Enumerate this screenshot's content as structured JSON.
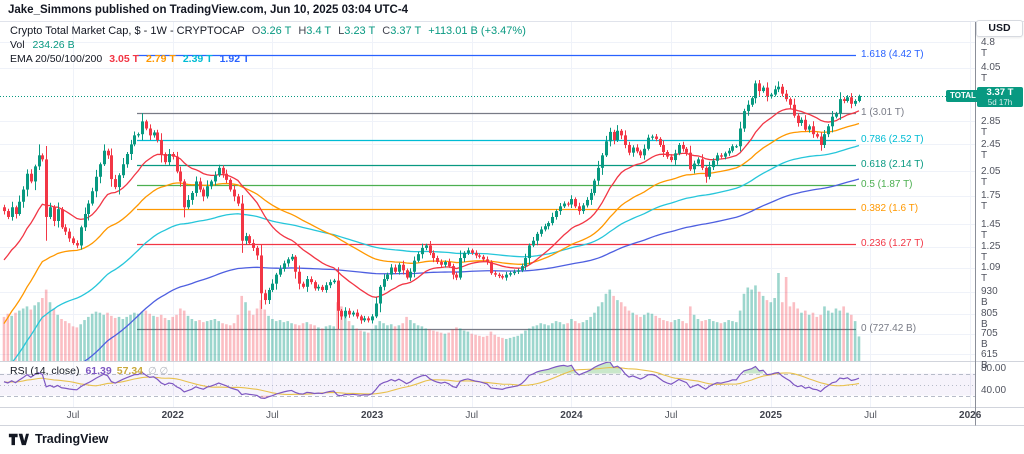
{
  "header": {
    "published_line": "Jake_Simmons published on TradingView.com, Jun 10, 2025 03:04 UTC-4"
  },
  "legend": {
    "title": "Crypto Total Market Cap, $ - 1W - CRYPTOCAP",
    "ohlc": [
      {
        "key": "O",
        "value": "3.26 T"
      },
      {
        "key": "H",
        "value": "3.4 T"
      },
      {
        "key": "L",
        "value": "3.23 T"
      },
      {
        "key": "C",
        "value": "3.37 T"
      }
    ],
    "change": "+113.01 B (+3.47%)",
    "vol_label": "Vol",
    "vol_value": "234.26 B",
    "ema_label": "EMA 20/50/100/200",
    "ema_values": [
      {
        "text": "3.05 T",
        "color": "#f23645"
      },
      {
        "text": "2.79 T",
        "color": "#ff9800"
      },
      {
        "text": "2.39 T",
        "color": "#00bcd4"
      },
      {
        "text": "1.92 T",
        "color": "#2962ff"
      }
    ]
  },
  "price_axis": {
    "currency": "USD",
    "ticks": [
      {
        "label": "4.8 T",
        "value": 4.8
      },
      {
        "label": "4.05 T",
        "value": 4.05
      },
      {
        "label": "2.85 T",
        "value": 2.85
      },
      {
        "label": "2.45 T",
        "value": 2.45
      },
      {
        "label": "2.05 T",
        "value": 2.05
      },
      {
        "label": "1.75 T",
        "value": 1.75
      },
      {
        "label": "1.45 T",
        "value": 1.45
      },
      {
        "label": "1.25 T",
        "value": 1.25
      },
      {
        "label": "1.09 T",
        "value": 1.09
      },
      {
        "label": "930 B",
        "value": 0.93
      },
      {
        "label": "805 B",
        "value": 0.805
      },
      {
        "label": "705 B",
        "value": 0.705
      },
      {
        "label": "615 B",
        "value": 0.615
      }
    ]
  },
  "rsi_axis": {
    "ticks": [
      {
        "label": "80.00",
        "value": 80
      },
      {
        "label": "40.00",
        "value": 40
      }
    ]
  },
  "time_axis": {
    "labels": [
      {
        "text": "Jul",
        "week": 18
      },
      {
        "text": "2022",
        "week": 44
      },
      {
        "text": "Jul",
        "week": 70
      },
      {
        "text": "2023",
        "week": 96
      },
      {
        "text": "Jul",
        "week": 122
      },
      {
        "text": "2024",
        "week": 148
      },
      {
        "text": "Jul",
        "week": 174
      },
      {
        "text": "2025",
        "week": 200
      },
      {
        "text": "Jul",
        "week": 226
      },
      {
        "text": "2026",
        "week": 252
      }
    ]
  },
  "fib_levels": [
    {
      "ratio": "1.618",
      "price_label": "4.42 T",
      "price": 4.42,
      "color": "#2962ff"
    },
    {
      "ratio": "1",
      "price_label": "3.01 T",
      "price": 3.01,
      "color": "#787b86"
    },
    {
      "ratio": "0.786",
      "price_label": "2.52 T",
      "price": 2.52,
      "color": "#00bcd4"
    },
    {
      "ratio": "0.618",
      "price_label": "2.14 T",
      "price": 2.14,
      "color": "#089981"
    },
    {
      "ratio": "0.5",
      "price_label": "1.87 T",
      "price": 1.87,
      "color": "#4caf50"
    },
    {
      "ratio": "0.382",
      "price_label": "1.6 T",
      "price": 1.6,
      "color": "#ff9800"
    },
    {
      "ratio": "0.236",
      "price_label": "1.27 T",
      "price": 1.27,
      "color": "#f23645"
    },
    {
      "ratio": "0",
      "price_label": "727.42 B",
      "price": 0.72742,
      "color": "#787b86"
    }
  ],
  "price_line": {
    "label": "TOTAL",
    "price_label": "3.37 T",
    "countdown": "5d 17h",
    "value": 3.37,
    "color": "#089981"
  },
  "rsi_legend": {
    "title": "RSI (14, close)",
    "value": "61.39",
    "ma_value": "57.34",
    "hidden": "∅ ∅"
  },
  "footer": {
    "brand": "TradingView"
  },
  "colors": {
    "up": "#089981",
    "down": "#f23645",
    "vol_up": "rgba(8,153,129,0.40)",
    "vol_down": "rgba(242,54,69,0.32)",
    "grid": "#eff2f9",
    "separator": "#d1d4dc",
    "axis_line": "#8b8f99",
    "rsi": "#7e57c2",
    "rsi_ma": "#e8c14d",
    "rsi_band": "rgba(126,87,194,0.07)",
    "rsi_ob_fill": "rgba(76,175,80,0.30)",
    "rsi_os_fill": "rgba(242,54,69,0.22)",
    "ema20": "#f23645",
    "ema50": "#ff9800",
    "ema100": "#26c6da",
    "ema200": "#4e5fe0"
  },
  "chart_data": {
    "type": "candlestick",
    "title": "Crypto Total Market Cap, $ - 1W - CRYPTOCAP",
    "symbol": "CRYPTOCAP:TOTAL",
    "timeframe": "1W",
    "unit": "trillions USD",
    "scale": "log",
    "start_week": "2021-03-01",
    "first_open": 1.62,
    "closes": [
      1.58,
      1.52,
      1.62,
      1.55,
      1.68,
      1.82,
      2.02,
      1.92,
      2.12,
      2.28,
      2.22,
      1.52,
      1.62,
      1.48,
      1.6,
      1.42,
      1.38,
      1.32,
      1.28,
      1.26,
      1.42,
      1.55,
      1.66,
      1.8,
      1.98,
      2.15,
      2.35,
      2.28,
      1.95,
      1.85,
      2.0,
      2.15,
      2.3,
      2.45,
      2.6,
      2.62,
      2.85,
      2.72,
      2.6,
      2.65,
      2.52,
      2.3,
      2.18,
      2.3,
      2.26,
      2.05,
      1.92,
      1.62,
      1.7,
      1.78,
      1.92,
      1.82,
      1.74,
      1.86,
      1.92,
      2.0,
      2.1,
      2.02,
      1.94,
      1.82,
      1.74,
      1.66,
      1.3,
      1.34,
      1.28,
      1.24,
      1.18,
      0.92,
      0.88,
      0.94,
      0.98,
      1.04,
      1.08,
      1.12,
      1.15,
      1.17,
      1.06,
      0.98,
      0.96,
      1.01,
      0.99,
      0.95,
      0.96,
      0.94,
      0.97,
      0.99,
      1.0,
      0.82,
      0.79,
      0.82,
      0.8,
      0.81,
      0.79,
      0.77,
      0.78,
      0.77,
      0.79,
      0.86,
      0.96,
      1.01,
      1.04,
      1.09,
      1.06,
      1.11,
      1.07,
      1.02,
      1.06,
      1.14,
      1.19,
      1.24,
      1.26,
      1.2,
      1.16,
      1.13,
      1.11,
      1.13,
      1.1,
      1.04,
      1.02,
      1.16,
      1.2,
      1.22,
      1.2,
      1.18,
      1.17,
      1.15,
      1.13,
      1.05,
      1.04,
      1.03,
      1.02,
      1.04,
      1.05,
      1.06,
      1.07,
      1.1,
      1.16,
      1.26,
      1.3,
      1.36,
      1.4,
      1.43,
      1.46,
      1.52,
      1.58,
      1.63,
      1.66,
      1.65,
      1.71,
      1.63,
      1.58,
      1.64,
      1.7,
      1.78,
      1.93,
      2.1,
      2.28,
      2.5,
      2.66,
      2.52,
      2.68,
      2.6,
      2.44,
      2.32,
      2.4,
      2.34,
      2.28,
      2.38,
      2.56,
      2.58,
      2.54,
      2.44,
      2.33,
      2.26,
      2.21,
      2.31,
      2.44,
      2.38,
      2.32,
      2.08,
      2.16,
      2.22,
      2.1,
      1.98,
      2.11,
      2.2,
      2.28,
      2.26,
      2.31,
      2.35,
      2.42,
      2.42,
      2.72,
      3.05,
      3.18,
      3.32,
      3.66,
      3.48,
      3.56,
      3.36,
      3.4,
      3.52,
      3.58,
      3.42,
      3.3,
      3.18,
      2.96,
      2.82,
      2.88,
      2.7,
      2.76,
      2.62,
      2.58,
      2.44,
      2.62,
      2.76,
      2.94,
      3.0,
      3.3,
      3.26,
      3.34,
      3.2,
      3.26,
      3.37
    ],
    "volumes_b": [
      420,
      450,
      430,
      460,
      480,
      500,
      520,
      490,
      530,
      560,
      600,
      680,
      560,
      500,
      440,
      400,
      380,
      360,
      330,
      320,
      350,
      390,
      420,
      450,
      470,
      460,
      440,
      460,
      430,
      410,
      420,
      400,
      420,
      440,
      460,
      450,
      470,
      480,
      450,
      430,
      420,
      440,
      410,
      390,
      420,
      440,
      500,
      480,
      430,
      400,
      380,
      390,
      370,
      380,
      390,
      400,
      380,
      360,
      350,
      340,
      360,
      440,
      620,
      560,
      480,
      440,
      500,
      580,
      490,
      430,
      400,
      380,
      390,
      370,
      380,
      360,
      350,
      340,
      360,
      370,
      350,
      340,
      320,
      310,
      330,
      340,
      330,
      560,
      520,
      440,
      380,
      340,
      310,
      290,
      280,
      270,
      300,
      340,
      380,
      360,
      340,
      350,
      330,
      340,
      360,
      420,
      390,
      360,
      340,
      330,
      310,
      300,
      290,
      280,
      270,
      260,
      270,
      300,
      320,
      310,
      290,
      280,
      260,
      250,
      240,
      230,
      240,
      280,
      250,
      230,
      220,
      210,
      220,
      230,
      240,
      260,
      290,
      310,
      330,
      340,
      360,
      350,
      340,
      360,
      380,
      370,
      350,
      360,
      400,
      380,
      360,
      370,
      390,
      420,
      460,
      520,
      560,
      640,
      680,
      620,
      580,
      560,
      520,
      480,
      460,
      440,
      420,
      440,
      460,
      450,
      430,
      410,
      390,
      380,
      370,
      390,
      400,
      380,
      360,
      520,
      440,
      400,
      380,
      390,
      400,
      380,
      370,
      360,
      370,
      390,
      380,
      370,
      480,
      640,
      700,
      680,
      720,
      660,
      620,
      580,
      560,
      600,
      840,
      560,
      800,
      520,
      560,
      500,
      460,
      480,
      440,
      460,
      420,
      440,
      520,
      480,
      460,
      500,
      480,
      520,
      460,
      440,
      380,
      234
    ],
    "extremes": {
      "9": {
        "high": 2.45
      },
      "11": {
        "low": 1.3
      },
      "26": {
        "high": 2.45
      },
      "36": {
        "high": 3.01
      },
      "62": {
        "low": 1.2
      },
      "67": {
        "low": 0.83
      },
      "87": {
        "low": 0.7274
      },
      "196": {
        "high": 3.73
      },
      "202": {
        "high": 3.71
      },
      "213": {
        "low": 2.35
      },
      "223": {
        "high": 3.4,
        "low": 3.23
      }
    },
    "last_candle": {
      "open": 3.26,
      "high": 3.4,
      "low": 3.23,
      "close": 3.37
    },
    "emas": [
      {
        "period": 20,
        "seed": 1.1,
        "value_label": "3.05 T"
      },
      {
        "period": 50,
        "seed": 0.72,
        "value_label": "2.79 T"
      },
      {
        "period": 100,
        "seed": 0.52,
        "value_label": "2.39 T"
      },
      {
        "period": 200,
        "seed": 0.33,
        "value_label": "1.92 T"
      }
    ],
    "rsi": {
      "period": 14,
      "value": 61.39,
      "ma_value": 57.34,
      "overbought": 70,
      "middle": 50,
      "oversold": 30
    },
    "fib_anchor_high": 3.01,
    "fib_anchor_low": 0.72742
  }
}
